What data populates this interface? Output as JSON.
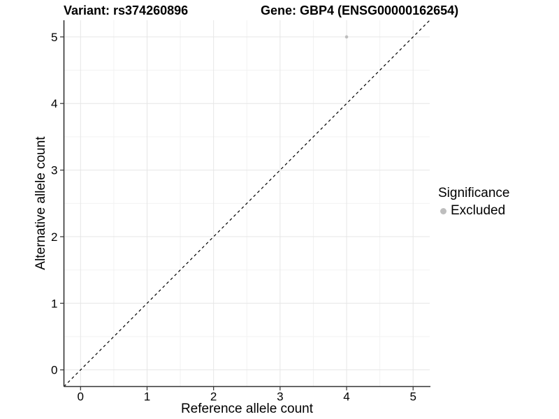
{
  "chart_data": {
    "type": "scatter",
    "title_left": "Variant: rs374260896",
    "title_right": "Gene: GBP4 (ENSG00000162654)",
    "xlabel": "Reference allele count",
    "ylabel": "Alternative allele count",
    "xlim": [
      -0.25,
      5.25
    ],
    "ylim": [
      -0.25,
      5.25
    ],
    "x_ticks": [
      0,
      1,
      2,
      3,
      4,
      5
    ],
    "y_ticks": [
      0,
      1,
      2,
      3,
      4,
      5
    ],
    "grid": "major+minor",
    "reference_line": {
      "type": "identity y=x",
      "style": "dashed",
      "color": "#000000"
    },
    "points": [
      {
        "x": 4,
        "y": 5,
        "significance": "Excluded",
        "color": "#bebebe"
      }
    ],
    "legend": {
      "title": "Significance",
      "position": "right",
      "entries": [
        {
          "label": "Excluded",
          "color": "#bebebe"
        }
      ]
    },
    "colors": {
      "major_grid": "#e6e6e6",
      "minor_grid": "#f2f2f2",
      "axis_line": "#333333",
      "tick_text": "#000000"
    }
  }
}
